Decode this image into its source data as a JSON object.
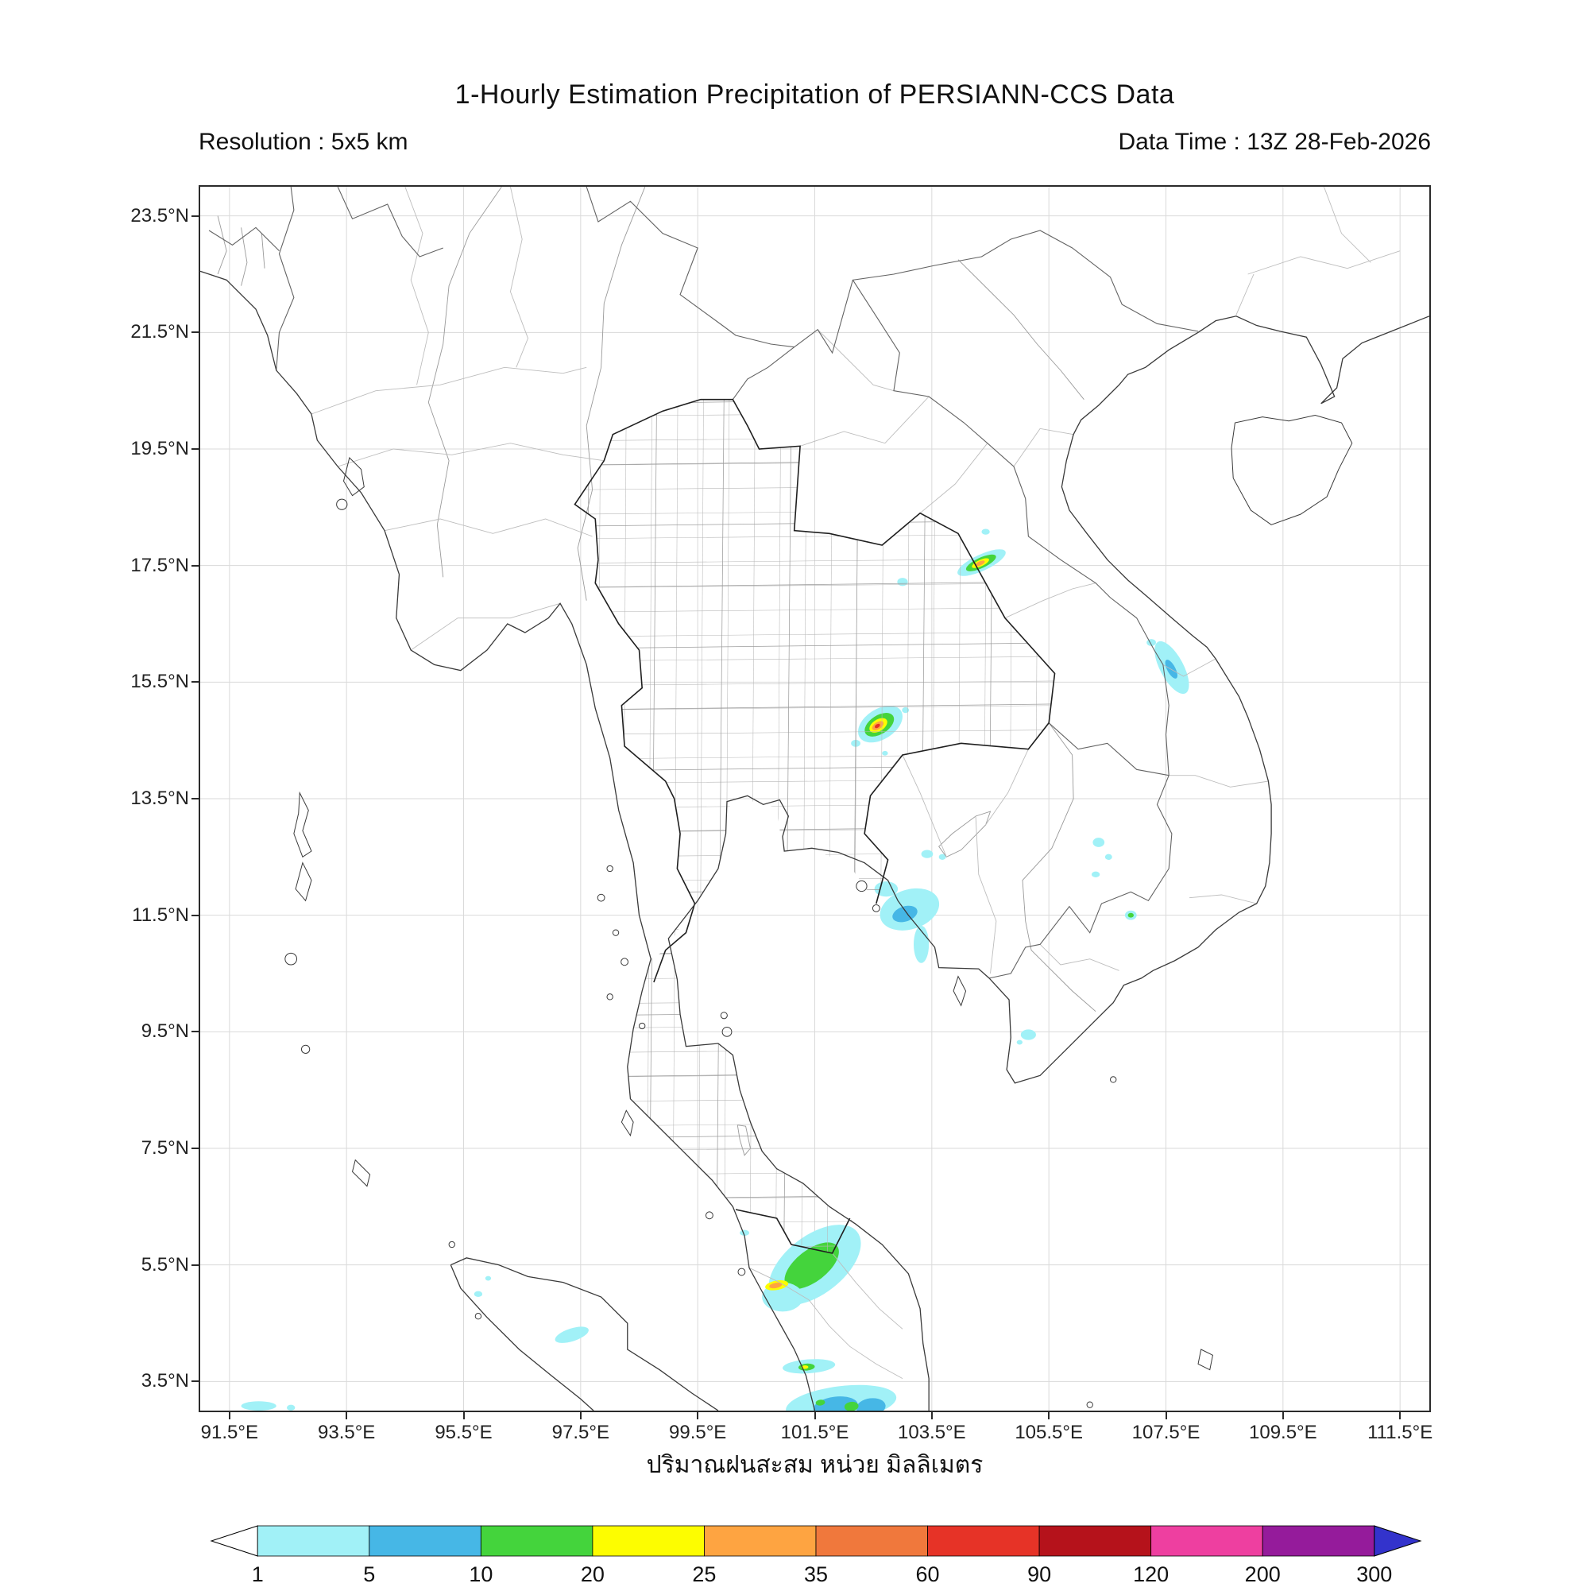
{
  "header": {
    "title": "1-Hourly Estimation Precipitation of PERSIANN-CCS Data",
    "resolution": "Resolution : 5x5 km",
    "data_time": "Data Time : 13Z 28-Feb-2026"
  },
  "map": {
    "extent_deg": {
      "lon_min": 91,
      "lon_max": 112,
      "lat_min": 3,
      "lat_max": 24
    },
    "lat_ticks": [
      {
        "label": "23.5°N",
        "value": 23.5
      },
      {
        "label": "21.5°N",
        "value": 21.5
      },
      {
        "label": "19.5°N",
        "value": 19.5
      },
      {
        "label": "17.5°N",
        "value": 17.5
      },
      {
        "label": "15.5°N",
        "value": 15.5
      },
      {
        "label": "13.5°N",
        "value": 13.5
      },
      {
        "label": "11.5°N",
        "value": 11.5
      },
      {
        "label": "9.5°N",
        "value": 9.5
      },
      {
        "label": "7.5°N",
        "value": 7.5
      },
      {
        "label": "5.5°N",
        "value": 5.5
      },
      {
        "label": "3.5°N",
        "value": 3.5
      }
    ],
    "lon_ticks": [
      {
        "label": "91.5°E",
        "value": 91.5
      },
      {
        "label": "93.5°E",
        "value": 93.5
      },
      {
        "label": "95.5°E",
        "value": 95.5
      },
      {
        "label": "97.5°E",
        "value": 97.5
      },
      {
        "label": "99.5°E",
        "value": 99.5
      },
      {
        "label": "101.5°E",
        "value": 101.5
      },
      {
        "label": "103.5°E",
        "value": 103.5
      },
      {
        "label": "105.5°E",
        "value": 105.5
      },
      {
        "label": "107.5°E",
        "value": 107.5
      },
      {
        "label": "109.5°E",
        "value": 109.5
      },
      {
        "label": "111.5°E",
        "value": 111.5
      }
    ],
    "precip_features": [
      {
        "area": "NE Thailand / Lao border streak",
        "lon": 104.35,
        "lat": 17.55,
        "max_mm": "25-60"
      },
      {
        "area": "Small cell NE Thailand",
        "lon": 103.0,
        "lat": 17.2,
        "max_mm": "1-5"
      },
      {
        "area": "Central-NE Thailand cell",
        "lon": 102.6,
        "lat": 14.8,
        "max_mm": "60-90"
      },
      {
        "area": "Central Vietnam coast",
        "lon": 107.6,
        "lat": 15.75,
        "max_mm": "5-10"
      },
      {
        "area": "Gulf of Thailand / Koh Kong",
        "lon": 103.15,
        "lat": 11.6,
        "max_mm": "5-10"
      },
      {
        "area": "Eastern Cambodia scattered",
        "lon": 106.5,
        "lat": 12.4,
        "max_mm": "10-20"
      },
      {
        "area": "Mekong delta west",
        "lon": 105.15,
        "lat": 9.45,
        "max_mm": "1-5"
      },
      {
        "area": "Peninsular Malaysia",
        "lon": 101.4,
        "lat": 5.5,
        "max_mm": "25-35"
      },
      {
        "area": "Southern Malaysia streak",
        "lon": 101.4,
        "lat": 3.75,
        "max_mm": "20-25"
      },
      {
        "area": "Malacca Strait south",
        "lon": 102.0,
        "lat": 3.1,
        "max_mm": "10-20"
      },
      {
        "area": "North Sumatra",
        "lon": 97.35,
        "lat": 4.3,
        "max_mm": "1-5"
      },
      {
        "area": "Southwest corner",
        "lon": 92.0,
        "lat": 3.1,
        "max_mm": "1-5"
      }
    ]
  },
  "colorbar": {
    "caption": "ปริมาณฝนสะสม หน่วย มิลลิเมตร",
    "tick_labels": [
      "1",
      "5",
      "10",
      "20",
      "25",
      "35",
      "60",
      "90",
      "120",
      "200",
      "300"
    ],
    "segment_colors": [
      "#a1f1f7",
      "#46b7e6",
      "#44d43c",
      "#fdfd00",
      "#fea441",
      "#f0783c",
      "#e63327",
      "#b5121b",
      "#ee3fa0",
      "#951b9b"
    ],
    "under_color": "#ffffff",
    "over_color": "#3333cc"
  }
}
